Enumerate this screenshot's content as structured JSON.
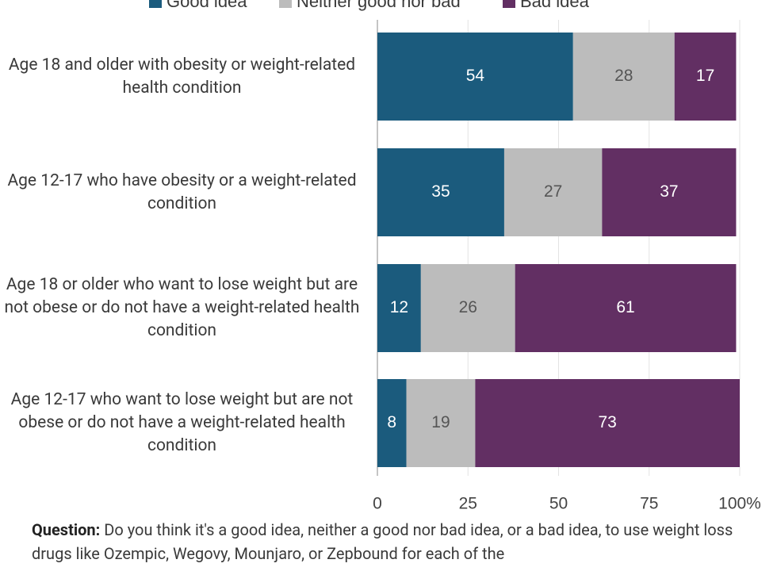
{
  "chart_data": {
    "type": "stacked-bar-horizontal",
    "categories": [
      "Age 18 and older with obesity or weight-related health condition",
      "Age 12-17 who have obesity or a weight-related condition",
      "Age 18 or older who want to lose weight but are not obese or do not have a weight-related health condition",
      "Age 12-17 who want to lose weight but are not obese or do not have a weight-related health condition"
    ],
    "series": [
      {
        "name": "Good idea",
        "color": "#1b5b7d",
        "values": [
          54,
          35,
          12,
          8
        ]
      },
      {
        "name": "Neither good nor bad",
        "color": "#bcbcbc",
        "values": [
          28,
          27,
          26,
          19
        ]
      },
      {
        "name": "Bad idea",
        "color": "#622f63",
        "values": [
          17,
          37,
          61,
          73
        ]
      }
    ],
    "xlim": [
      0,
      100
    ],
    "xticks": [
      0,
      25,
      50,
      75,
      {
        "value": 100,
        "label": "100%"
      }
    ],
    "grid": true,
    "legend": "top",
    "question_label": "Question:",
    "question_text": "Do you think it's a good idea, neither a good nor bad idea, or a bad idea, to use weight loss drugs like Ozempic, Wegovy, Mounjaro, or Zepbound for each of the"
  }
}
